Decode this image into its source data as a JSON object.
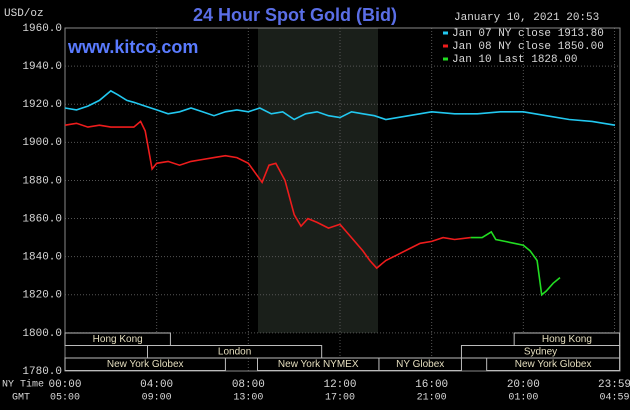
{
  "chart_data": {
    "type": "line",
    "title": "24 Hour Spot Gold (Bid)",
    "y_label": "USD/oz",
    "timestamp": "January 10, 2021 20:53",
    "watermark": "www.kitco.com",
    "x_label": "NY Time",
    "x2_label": "GMT",
    "xlim": [
      0,
      24
    ],
    "xticks": [
      {
        "value": 0,
        "label": "00:00"
      },
      {
        "value": 4,
        "label": "04:00"
      },
      {
        "value": 8,
        "label": "08:00"
      },
      {
        "value": 12,
        "label": "12:00"
      },
      {
        "value": 16,
        "label": "16:00"
      },
      {
        "value": 20,
        "label": "20:00"
      },
      {
        "value": 23.98,
        "label": "23:59"
      }
    ],
    "x2ticklabels": [
      "05:00",
      "09:00",
      "13:00",
      "17:00",
      "21:00",
      "01:00",
      "04:59"
    ],
    "ylim": [
      1780,
      1960
    ],
    "yticks": [
      {
        "value": 1780,
        "label": "1780.0"
      },
      {
        "value": 1800,
        "label": "1800.0"
      },
      {
        "value": 1820,
        "label": "1820.0"
      },
      {
        "value": 1840,
        "label": "1840.0"
      },
      {
        "value": 1860,
        "label": "1860.0"
      },
      {
        "value": 1880,
        "label": "1880.0"
      },
      {
        "value": 1900,
        "label": "1900.0"
      },
      {
        "value": 1920,
        "label": "1920.0"
      },
      {
        "value": 1940,
        "label": "1940.0"
      },
      {
        "value": 1960,
        "label": "1960.0"
      }
    ],
    "grid": true,
    "legend": "top-right",
    "sessions": [
      "Hong Kong",
      "Hong Kong",
      "London",
      "Sydney",
      "New York Globex",
      "New York NYMEX",
      "NY Globex",
      "New York Globex"
    ],
    "series": [
      {
        "name": "Jan 07 NY close 1913.80",
        "color": "#22c8f0",
        "x": [
          0,
          0.5,
          1,
          1.5,
          2,
          2.3,
          2.7,
          3,
          3.5,
          4,
          4.5,
          5,
          5.5,
          6,
          6.5,
          7,
          7.5,
          8,
          8.5,
          9,
          9.5,
          10,
          10.5,
          11,
          11.5,
          12,
          12.5,
          13,
          13.5,
          14,
          15,
          16,
          17,
          18,
          19,
          20,
          21,
          22,
          23,
          24
        ],
        "values": [
          1918,
          1917,
          1919,
          1922,
          1927,
          1925,
          1922,
          1921,
          1919,
          1917,
          1915,
          1916,
          1918,
          1916,
          1914,
          1916,
          1917,
          1916,
          1918,
          1915,
          1916,
          1912,
          1915,
          1916,
          1914,
          1913,
          1916,
          1915,
          1914,
          1912,
          1914,
          1916,
          1915,
          1915,
          1916,
          1916,
          1914,
          1912,
          1911,
          1909
        ]
      },
      {
        "name": "Jan 08 NY close 1850.00",
        "color": "#ee1c1c",
        "x": [
          0,
          0.5,
          1,
          1.5,
          2,
          2.5,
          3,
          3.3,
          3.5,
          3.8,
          4,
          4.5,
          5,
          5.5,
          6,
          6.5,
          7,
          7.5,
          8,
          8.3,
          8.6,
          8.9,
          9.2,
          9.6,
          10,
          10.3,
          10.6,
          11,
          11.5,
          12,
          12.5,
          13,
          13.3,
          13.6,
          14,
          14.5,
          15,
          15.5,
          16,
          16.5,
          17,
          17.7
        ],
        "values": [
          1909,
          1910,
          1908,
          1909,
          1908,
          1908,
          1908,
          1911,
          1906,
          1886,
          1889,
          1890,
          1888,
          1890,
          1891,
          1892,
          1893,
          1892,
          1889,
          1884,
          1879,
          1888,
          1889,
          1880,
          1862,
          1856,
          1860,
          1858,
          1855,
          1857,
          1850,
          1843,
          1838,
          1834,
          1838,
          1841,
          1844,
          1847,
          1848,
          1850,
          1849,
          1850
        ]
      },
      {
        "name": "Jan 10 Last 1828.00",
        "color": "#22dd22",
        "x": [
          17.7,
          18.2,
          18.6,
          18.8,
          19.2,
          19.6,
          20,
          20.3,
          20.6,
          20.8,
          21,
          21.3,
          21.6
        ],
        "values": [
          1850,
          1850,
          1853,
          1849,
          1848,
          1847,
          1846,
          1843,
          1838,
          1820,
          1822,
          1826,
          1829
        ]
      }
    ]
  }
}
